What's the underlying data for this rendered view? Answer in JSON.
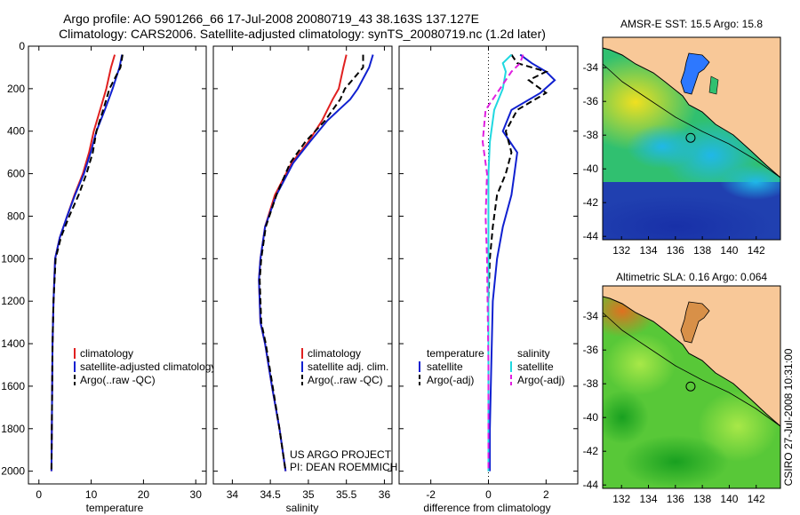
{
  "header": {
    "line1": "Argo profile: AO 5901266_66 17-Jul-2008 20080719_43 38.163S 137.127E",
    "line2": "Climatology: CARS2006. Satellite-adjusted climatology: synTS_20080719.nc (1.2d later)"
  },
  "side_label": "CSIRO 27-Jul-2008 10:31:00",
  "colors": {
    "climatology": "#e02020",
    "satellite": "#1020d0",
    "argo": "#000000",
    "sat_diff": "#20d8e0",
    "argo_sal_diff": "#e020e0",
    "land": "#f8c898"
  },
  "chart_data": [
    {
      "type": "line",
      "id": "temperature",
      "xlabel": "temperature",
      "xlim": [
        -2,
        32
      ],
      "ylim": [
        0,
        2060
      ],
      "xticks": [
        "0",
        "10",
        "20",
        "30"
      ],
      "yticks": [
        "0",
        "200",
        "400",
        "600",
        "800",
        "1000",
        "1200",
        "1400",
        "1600",
        "1800",
        "2000"
      ],
      "legend_placement": "lower-right",
      "series": [
        {
          "name": "climatology",
          "style": "solid",
          "color": "#e02020",
          "x": [
            14.5,
            13.8,
            12.9,
            11.7,
            10.5,
            9.6,
            8.4,
            6.8,
            5.4,
            4.0,
            3.1,
            2.8,
            2.6,
            2.5,
            2.4
          ],
          "y": [
            40,
            100,
            200,
            300,
            400,
            500,
            600,
            700,
            800,
            900,
            1000,
            1200,
            1400,
            1700,
            2000
          ]
        },
        {
          "name": "satellite-adjusted climatology",
          "style": "solid",
          "color": "#1020d0",
          "x": [
            15.9,
            15.4,
            14.1,
            12.6,
            11.0,
            9.9,
            8.6,
            6.9,
            5.4,
            4.0,
            3.1,
            2.8,
            2.6,
            2.5,
            2.4
          ],
          "y": [
            40,
            100,
            200,
            300,
            400,
            500,
            600,
            700,
            800,
            900,
            1000,
            1200,
            1400,
            1700,
            2000
          ]
        },
        {
          "name": "Argo(..raw -QC)",
          "style": "dashed",
          "color": "#000000",
          "x": [
            16.0,
            15.6,
            13.5,
            12.3,
            11.0,
            10.3,
            9.1,
            7.6,
            5.8,
            4.2,
            3.2,
            2.8,
            2.6,
            2.5,
            2.4
          ],
          "y": [
            40,
            100,
            200,
            300,
            400,
            500,
            600,
            700,
            800,
            900,
            1000,
            1200,
            1400,
            1700,
            2000
          ]
        }
      ]
    },
    {
      "type": "line",
      "id": "salinity",
      "xlabel": "salinity",
      "xlim": [
        33.75,
        36.1
      ],
      "ylim": [
        0,
        2060
      ],
      "xticks": [
        "34",
        "34.5",
        "35",
        "35.5",
        "36"
      ],
      "legend_placement": "lower-right",
      "annotation": [
        "US ARGO PROJECT",
        "PI: DEAN ROEMMICH"
      ],
      "series": [
        {
          "name": "climatology",
          "style": "solid",
          "color": "#e02020",
          "x": [
            35.5,
            35.46,
            35.4,
            35.32,
            35.18,
            35.0,
            34.78,
            34.56,
            34.43,
            34.37,
            34.35,
            34.37,
            34.43,
            34.52,
            34.62,
            34.7
          ],
          "y": [
            40,
            100,
            200,
            250,
            350,
            450,
            550,
            700,
            850,
            1000,
            1100,
            1300,
            1400,
            1600,
            1800,
            2000
          ]
        },
        {
          "name": "satellite adj. clim.",
          "style": "solid",
          "color": "#1020d0",
          "x": [
            35.85,
            35.8,
            35.65,
            35.55,
            35.25,
            35.02,
            34.8,
            34.58,
            34.43,
            34.37,
            34.35,
            34.37,
            34.43,
            34.52,
            34.62,
            34.7
          ],
          "y": [
            40,
            100,
            200,
            250,
            350,
            450,
            550,
            700,
            850,
            1000,
            1100,
            1300,
            1400,
            1600,
            1800,
            2000
          ]
        },
        {
          "name": "Argo(..raw -QC)",
          "style": "dashed",
          "color": "#000000",
          "x": [
            35.72,
            35.72,
            35.48,
            35.42,
            35.22,
            34.96,
            34.76,
            34.58,
            34.44,
            34.38,
            34.36,
            34.38,
            34.44,
            34.53,
            34.62,
            34.7
          ],
          "y": [
            40,
            100,
            200,
            250,
            350,
            450,
            550,
            700,
            850,
            1000,
            1100,
            1300,
            1400,
            1600,
            1800,
            2000
          ]
        }
      ]
    },
    {
      "type": "line",
      "id": "difference",
      "xlabel": "difference from climatology",
      "xlim": [
        -3.1,
        3.1
      ],
      "ylim": [
        0,
        2060
      ],
      "xticks": [
        "-2",
        "0",
        "2"
      ],
      "legend_placement": "lower-right",
      "legend_groups": [
        {
          "title": "temperature",
          "entries": [
            "satellite",
            "Argo(-adj)"
          ]
        },
        {
          "title": "salinity",
          "entries": [
            "satellite",
            "Argo(-adj)"
          ]
        }
      ],
      "series": [
        {
          "name": "satellite",
          "group": "temperature",
          "style": "solid",
          "color": "#1020d0",
          "x": [
            1.1,
            1.5,
            2.0,
            2.3,
            1.8,
            0.8,
            0.5,
            1.0,
            0.9,
            0.8,
            0.5,
            0.3,
            0.15,
            0.1,
            0.05,
            0.05
          ],
          "y": [
            40,
            80,
            120,
            160,
            220,
            300,
            400,
            500,
            600,
            700,
            850,
            1000,
            1200,
            1500,
            1800,
            2000
          ]
        },
        {
          "name": "Argo(-adj)",
          "group": "temperature",
          "style": "dashed",
          "color": "#000000",
          "x": [
            0.8,
            1.0,
            2.0,
            1.4,
            2.0,
            1.0,
            0.6,
            0.8,
            0.6,
            0.3,
            0.15,
            0.05,
            0.0,
            0.0,
            0.0
          ],
          "y": [
            40,
            80,
            120,
            160,
            220,
            300,
            400,
            500,
            600,
            700,
            850,
            1000,
            1200,
            1500,
            2000
          ]
        },
        {
          "name": "satellite",
          "group": "salinity",
          "style": "solid",
          "color": "#20d8e0",
          "x": [
            0.8,
            0.5,
            0.6,
            0.5,
            0.2,
            0.05,
            0.0,
            0.0,
            0.0,
            0.0,
            0.0
          ],
          "y": [
            40,
            80,
            120,
            200,
            300,
            450,
            600,
            800,
            1000,
            1500,
            2000
          ]
        },
        {
          "name": "Argo(-adj)",
          "group": "salinity",
          "style": "dashed",
          "color": "#e020e0",
          "x": [
            1.2,
            1.1,
            0.8,
            0.4,
            -0.1,
            -0.2,
            -0.05,
            -0.1,
            -0.05,
            0.0,
            0.0
          ],
          "y": [
            40,
            80,
            120,
            200,
            300,
            450,
            600,
            800,
            1000,
            1500,
            2000
          ]
        }
      ]
    },
    {
      "type": "heatmap",
      "id": "sst_map",
      "title": "AMSR-E SST: 15.5 Argo: 15.8",
      "xlim": [
        130.6,
        143.8
      ],
      "ylim": [
        -44.2,
        -32.2
      ],
      "xticks": [
        "132",
        "134",
        "136",
        "138",
        "140",
        "142"
      ],
      "yticks": [
        "-34",
        "-36",
        "-38",
        "-40",
        "-42",
        "-44"
      ],
      "float_position": {
        "lon": 137.13,
        "lat": -38.16
      }
    },
    {
      "type": "heatmap",
      "id": "sla_map",
      "title": "Altimetric SLA: 0.16 Argo: 0.064",
      "xlim": [
        130.6,
        143.8
      ],
      "ylim": [
        -44.2,
        -32.2
      ],
      "xticks": [
        "132",
        "134",
        "136",
        "138",
        "140",
        "142"
      ],
      "yticks": [
        "-34",
        "-36",
        "-38",
        "-40",
        "-42",
        "-44"
      ],
      "float_position": {
        "lon": 137.13,
        "lat": -38.16
      }
    }
  ]
}
